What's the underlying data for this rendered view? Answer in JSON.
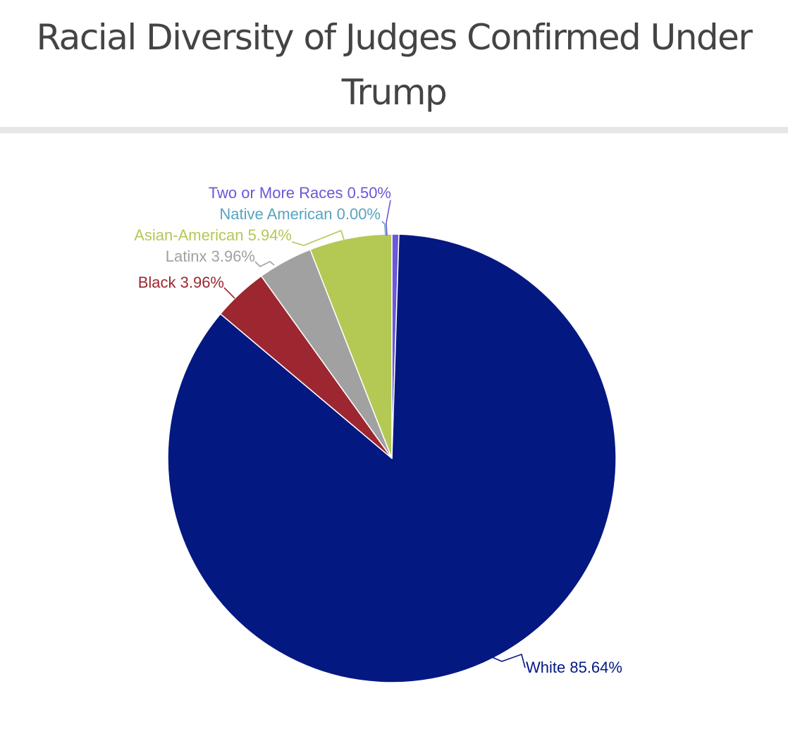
{
  "chart_data": {
    "type": "pie",
    "title": "Racial Diversity of Judges Confirmed Under Trump",
    "slices": [
      {
        "name": "White",
        "value": 85.64,
        "label": "White 85.64%",
        "color": "#041882"
      },
      {
        "name": "Black",
        "value": 3.96,
        "label": "Black 3.96%",
        "color": "#9c2731"
      },
      {
        "name": "Latinx",
        "value": 3.96,
        "label": "Latinx 3.96%",
        "color": "#a1a1a1"
      },
      {
        "name": "Asian-American",
        "value": 5.94,
        "label": "Asian-American 5.94%",
        "color": "#b3c954"
      },
      {
        "name": "Native American",
        "value": 0.0,
        "label": "Native American 0.00%",
        "color": "#58a4c0"
      },
      {
        "name": "Two or More Races",
        "value": 0.5,
        "label": "Two or More Races 0.50%",
        "color": "#6c57d8"
      }
    ]
  }
}
